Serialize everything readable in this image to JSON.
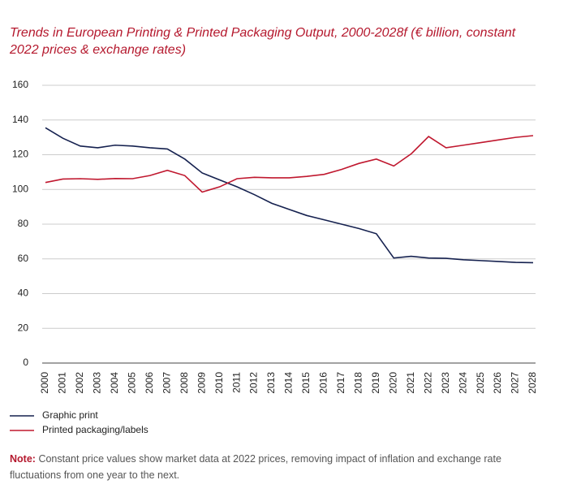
{
  "chart_data": {
    "type": "line",
    "title": "Trends in European Printing & Printed Packaging Output, 2000-2028f (€ billion, constant 2022 prices & exchange rates)",
    "categories": [
      "2000",
      "2001",
      "2002",
      "2003",
      "2004",
      "2005",
      "2006",
      "2007",
      "2008",
      "2009",
      "2010",
      "2011",
      "2012",
      "2013",
      "2014",
      "2015",
      "2016",
      "2017",
      "2018",
      "2019",
      "2020",
      "2021",
      "2022",
      "2023",
      "2024",
      "2025",
      "2026",
      "2027",
      "2028"
    ],
    "series": [
      {
        "name": "Graphic print",
        "color": "#15214f",
        "values": [
          135.5,
          129.5,
          125,
          124,
          125.5,
          125,
          124,
          123.3,
          117.5,
          109.5,
          105.5,
          101.5,
          97,
          92,
          88.5,
          85,
          82.5,
          80,
          77.5,
          74.5,
          60.5,
          61.5,
          60.5,
          60.3,
          59.5,
          59,
          58.5,
          58,
          57.8
        ]
      },
      {
        "name": "Printed packaging/labels",
        "color": "#c0182f",
        "values": [
          104,
          106,
          106.2,
          105.8,
          106.3,
          106.2,
          108,
          111,
          108,
          98.5,
          101.5,
          106.2,
          107,
          106.7,
          106.7,
          107.5,
          108.7,
          111.5,
          115,
          117.5,
          113.5,
          120.5,
          130.5,
          124,
          125.5,
          127,
          128.5,
          130,
          131
        ]
      }
    ],
    "ylim": [
      0,
      160
    ],
    "yticks": [
      0,
      20,
      40,
      60,
      80,
      100,
      120,
      140,
      160
    ],
    "grid": true,
    "legend": "bottom-left",
    "note_label": "Note:",
    "note": "Constant price values show market data at 2022 prices, removing impact of inflation and exchange rate fluctuations from one year to the next."
  }
}
